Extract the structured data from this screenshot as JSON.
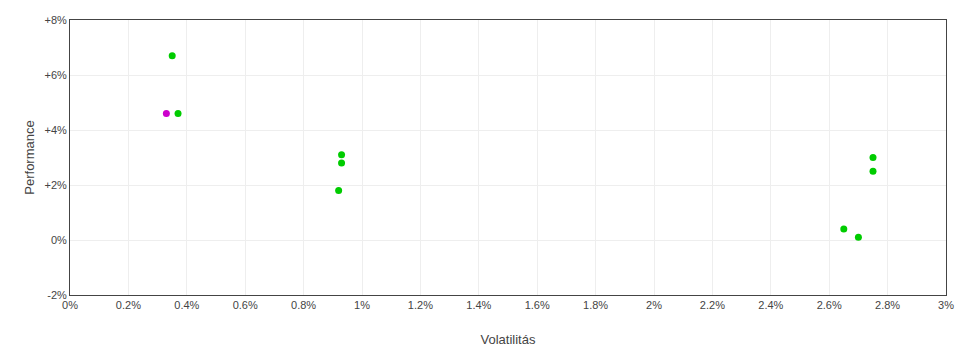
{
  "chart_data": {
    "type": "scatter",
    "xlabel": "Volatilitás",
    "ylabel": "Performance",
    "xlim": [
      0,
      0.03
    ],
    "ylim": [
      -0.02,
      0.08
    ],
    "xticks": [
      {
        "value": 0,
        "label": "0%"
      },
      {
        "value": 0.002,
        "label": "0.2%"
      },
      {
        "value": 0.004,
        "label": "0.4%"
      },
      {
        "value": 0.006,
        "label": "0.6%"
      },
      {
        "value": 0.008,
        "label": "0.8%"
      },
      {
        "value": 0.01,
        "label": "1%"
      },
      {
        "value": 0.012,
        "label": "1.2%"
      },
      {
        "value": 0.014,
        "label": "1.4%"
      },
      {
        "value": 0.016,
        "label": "1.6%"
      },
      {
        "value": 0.018,
        "label": "1.8%"
      },
      {
        "value": 0.02,
        "label": "2%"
      },
      {
        "value": 0.022,
        "label": "2.2%"
      },
      {
        "value": 0.024,
        "label": "2.4%"
      },
      {
        "value": 0.026,
        "label": "2.6%"
      },
      {
        "value": 0.028,
        "label": "2.8%"
      },
      {
        "value": 0.03,
        "label": "3%"
      }
    ],
    "yticks": [
      {
        "value": -0.02,
        "label": "-2%"
      },
      {
        "value": 0,
        "label": "0%"
      },
      {
        "value": 0.02,
        "label": "+2%"
      },
      {
        "value": 0.04,
        "label": "+4%"
      },
      {
        "value": 0.06,
        "label": "+6%"
      },
      {
        "value": 0.08,
        "label": "+8%"
      }
    ],
    "grid": true,
    "series": [
      {
        "color": "#00cc00",
        "x": [
          0.0035,
          0.0037,
          0.0093,
          0.0093,
          0.0092,
          0.0275,
          0.0275,
          0.0265,
          0.027
        ],
        "values": [
          0.067,
          0.046,
          0.031,
          0.028,
          0.018,
          0.03,
          0.025,
          0.004,
          0.001
        ]
      },
      {
        "color": "#cc00cc",
        "x": [
          0.0033
        ],
        "values": [
          0.046
        ]
      }
    ]
  }
}
